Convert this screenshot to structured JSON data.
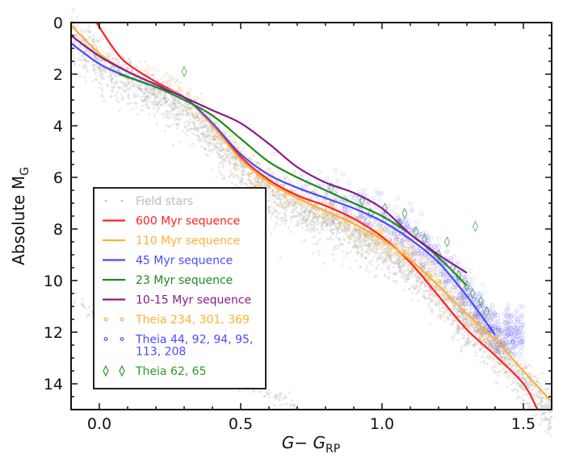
{
  "chart_data": {
    "type": "scatter",
    "title": "",
    "xlabel": "G− G",
    "xlabel_sub": "RP",
    "ylabel": "Absolute M",
    "ylabel_sub": "G",
    "xlim": [
      -0.1,
      1.6
    ],
    "ylim": [
      15,
      0
    ],
    "y_inverted": true,
    "grid": false,
    "legend_placement": "lower-left",
    "xticks": [
      {
        "v": 0.0,
        "label": "0.0"
      },
      {
        "v": 0.5,
        "label": "0.5"
      },
      {
        "v": 1.0,
        "label": "1.0"
      },
      {
        "v": 1.5,
        "label": "1.5"
      }
    ],
    "yticks": [
      {
        "v": 0,
        "label": "0"
      },
      {
        "v": 2,
        "label": "2"
      },
      {
        "v": 4,
        "label": "4"
      },
      {
        "v": 6,
        "label": "6"
      },
      {
        "v": 8,
        "label": "8"
      },
      {
        "v": 10,
        "label": "10"
      },
      {
        "v": 12,
        "label": "12"
      },
      {
        "v": 14,
        "label": "14"
      }
    ],
    "series": [
      {
        "name": "Field stars",
        "kind": "points",
        "color": "#bbbbbb"
      },
      {
        "name": "600 Myr sequence",
        "kind": "line",
        "color": "#ff2020",
        "points": [
          [
            -0.01,
            0
          ],
          [
            0.05,
            1.0
          ],
          [
            0.1,
            1.6
          ],
          [
            0.2,
            2.3
          ],
          [
            0.3,
            2.9
          ],
          [
            0.4,
            3.9
          ],
          [
            0.5,
            5.2
          ],
          [
            0.6,
            6.1
          ],
          [
            0.7,
            6.7
          ],
          [
            0.8,
            7.1
          ],
          [
            0.9,
            7.6
          ],
          [
            1.0,
            8.3
          ],
          [
            1.1,
            9.3
          ],
          [
            1.2,
            10.6
          ],
          [
            1.3,
            11.9
          ],
          [
            1.4,
            12.9
          ],
          [
            1.5,
            14.0
          ],
          [
            1.55,
            15.0
          ]
        ]
      },
      {
        "name": "110 Myr sequence",
        "kind": "line",
        "color": "#ffb030",
        "points": [
          [
            -0.1,
            0.1
          ],
          [
            0.0,
            1.2
          ],
          [
            0.1,
            1.9
          ],
          [
            0.2,
            2.4
          ],
          [
            0.3,
            2.9
          ],
          [
            0.4,
            4.0
          ],
          [
            0.5,
            5.3
          ],
          [
            0.6,
            6.2
          ],
          [
            0.7,
            6.8
          ],
          [
            0.8,
            7.3
          ],
          [
            0.9,
            7.8
          ],
          [
            1.0,
            8.4
          ],
          [
            1.1,
            9.2
          ],
          [
            1.2,
            10.2
          ],
          [
            1.3,
            11.3
          ],
          [
            1.4,
            12.3
          ],
          [
            1.5,
            13.5
          ],
          [
            1.6,
            14.7
          ]
        ]
      },
      {
        "name": "45 Myr sequence",
        "kind": "line",
        "color": "#4a4aff",
        "points": [
          [
            -0.1,
            0.8
          ],
          [
            0.0,
            1.6
          ],
          [
            0.1,
            2.1
          ],
          [
            0.2,
            2.5
          ],
          [
            0.3,
            2.9
          ],
          [
            0.4,
            3.9
          ],
          [
            0.5,
            5.1
          ],
          [
            0.6,
            5.9
          ],
          [
            0.7,
            6.4
          ],
          [
            0.8,
            6.8
          ],
          [
            0.9,
            7.2
          ],
          [
            1.0,
            7.7
          ],
          [
            1.1,
            8.4
          ],
          [
            1.2,
            9.3
          ],
          [
            1.3,
            10.6
          ],
          [
            1.4,
            12.1
          ]
        ]
      },
      {
        "name": "23 Myr sequence",
        "kind": "line",
        "color": "#1f8a1f",
        "points": [
          [
            0.07,
            2.0
          ],
          [
            0.2,
            2.5
          ],
          [
            0.3,
            3.0
          ],
          [
            0.4,
            3.6
          ],
          [
            0.5,
            4.5
          ],
          [
            0.6,
            5.4
          ],
          [
            0.7,
            6.0
          ],
          [
            0.8,
            6.5
          ],
          [
            0.9,
            7.0
          ],
          [
            1.0,
            7.5
          ],
          [
            1.1,
            8.2
          ],
          [
            1.2,
            9.1
          ],
          [
            1.3,
            10.2
          ]
        ]
      },
      {
        "name": "10-15 Myr sequence",
        "kind": "line",
        "color": "#8a1a8a",
        "points": [
          [
            -0.1,
            0.5
          ],
          [
            0.0,
            1.3
          ],
          [
            0.1,
            1.9
          ],
          [
            0.2,
            2.4
          ],
          [
            0.3,
            2.9
          ],
          [
            0.4,
            3.4
          ],
          [
            0.5,
            3.9
          ],
          [
            0.6,
            4.7
          ],
          [
            0.7,
            5.6
          ],
          [
            0.8,
            6.2
          ],
          [
            0.9,
            6.6
          ],
          [
            1.0,
            7.2
          ],
          [
            1.1,
            8.2
          ],
          [
            1.2,
            9.0
          ],
          [
            1.3,
            9.7
          ]
        ]
      },
      {
        "name": "Theia 234, 301, 369",
        "kind": "points",
        "color": "#ffb030",
        "marker": "circle"
      },
      {
        "name": "Theia 44, 92, 94, 95,\n113, 208",
        "name_lines": [
          "Theia 44, 92, 94, 95,",
          "113, 208"
        ],
        "kind": "points",
        "color": "#4a4aff",
        "marker": "circle"
      },
      {
        "name": "Theia 62, 65",
        "kind": "points",
        "color": "#2a9a2a",
        "marker": "diamond",
        "points": [
          [
            0.3,
            1.9
          ],
          [
            0.82,
            6.4
          ],
          [
            0.93,
            6.9
          ],
          [
            0.96,
            7.4
          ],
          [
            1.01,
            7.2
          ],
          [
            1.06,
            7.8
          ],
          [
            1.08,
            7.4
          ],
          [
            1.12,
            8.1
          ],
          [
            1.15,
            8.4
          ],
          [
            1.2,
            9.0
          ],
          [
            1.23,
            8.5
          ],
          [
            1.25,
            9.5
          ],
          [
            1.27,
            9.8
          ],
          [
            1.33,
            7.9
          ],
          [
            1.3,
            10.2
          ],
          [
            1.32,
            10.5
          ],
          [
            1.35,
            10.8
          ],
          [
            1.37,
            11.2
          ]
        ]
      }
    ]
  }
}
